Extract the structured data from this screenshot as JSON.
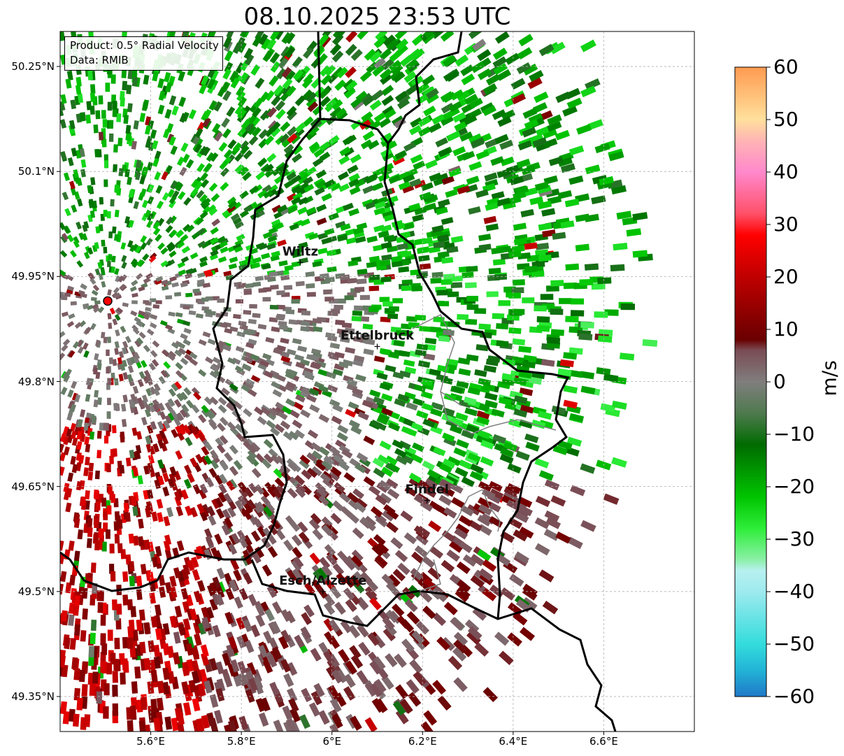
{
  "title": "08.10.2025 23:53 UTC",
  "info": {
    "product": "Product: 0.5° Radial Velocity",
    "data_source": "Data: RMIB"
  },
  "map_extent": {
    "lon": [
      5.4,
      6.8
    ],
    "lat": [
      49.3,
      50.3
    ]
  },
  "lat_labels": [
    "50.25°N",
    "50.1°N",
    "49.95°N",
    "49.8°N",
    "49.65°N",
    "49.5°N",
    "49.35°N"
  ],
  "lon_labels": [
    "5.6°E",
    "5.8°E",
    "6°E",
    "6.2°E",
    "6.4°E",
    "6.6°E"
  ],
  "cities": [
    {
      "name": "Wiltz",
      "lon": 5.93,
      "lat": 49.97
    },
    {
      "name": "Ettelbruck",
      "lon": 6.1,
      "lat": 49.85
    },
    {
      "name": "Findel",
      "lon": 6.21,
      "lat": 49.63
    },
    {
      "name": "Esch/Alzette",
      "lon": 5.98,
      "lat": 49.5
    }
  ],
  "radar_site": {
    "lon": 5.505,
    "lat": 49.915
  },
  "colorbar": {
    "label": "m/s",
    "ticks": [
      "60",
      "50",
      "40",
      "30",
      "20",
      "10",
      "0",
      "−10",
      "−20",
      "−30",
      "−40",
      "−50",
      "−60"
    ],
    "min": -60,
    "max": 60,
    "stops": [
      {
        "v": -60,
        "c": "#1f78c8"
      },
      {
        "v": -55,
        "c": "#22b4d6"
      },
      {
        "v": -50,
        "c": "#33dcdc"
      },
      {
        "v": -40,
        "c": "#9eeaee"
      },
      {
        "v": -36,
        "c": "#b8f0f0"
      },
      {
        "v": -34,
        "c": "#8cf0a8"
      },
      {
        "v": -28,
        "c": "#2eee3a"
      },
      {
        "v": -22,
        "c": "#00c400"
      },
      {
        "v": -12,
        "c": "#006b00"
      },
      {
        "v": -6,
        "c": "#4e7a4e"
      },
      {
        "v": 0,
        "c": "#807e7e"
      },
      {
        "v": 6,
        "c": "#7a4c55"
      },
      {
        "v": 8,
        "c": "#6a0000"
      },
      {
        "v": 20,
        "c": "#c00000"
      },
      {
        "v": 28,
        "c": "#ff0000"
      },
      {
        "v": 32,
        "c": "#ff5068"
      },
      {
        "v": 40,
        "c": "#ff88cc"
      },
      {
        "v": 46,
        "c": "#ffb4b4"
      },
      {
        "v": 50,
        "c": "#ffe09c"
      },
      {
        "v": 60,
        "c": "#ff9a50"
      }
    ]
  },
  "colors": {
    "border": "#000000",
    "grid": "#b0b0b0",
    "inner_boundary": "#808080",
    "radar_marker": "#ff0000"
  }
}
